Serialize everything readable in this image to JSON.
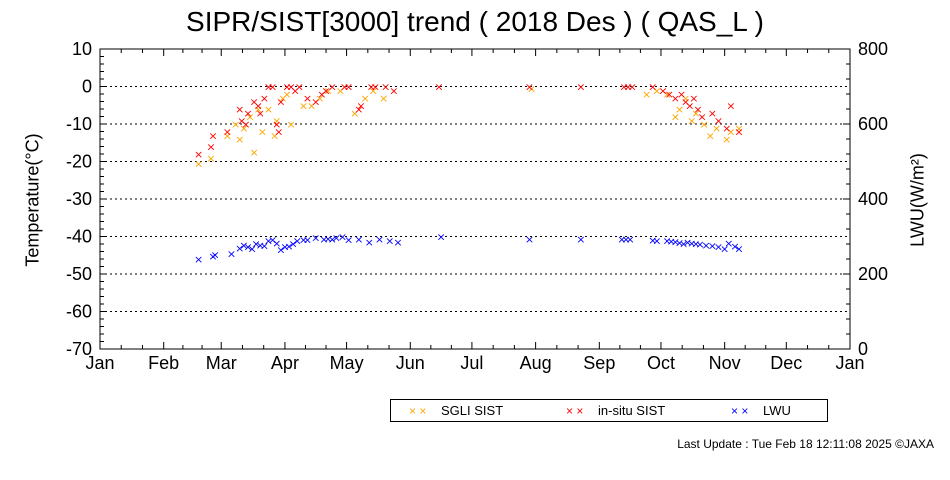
{
  "chart_data": {
    "type": "scatter",
    "title": "SIPR/SIST[3000] trend ( 2018 Des ) ( QAS_L )",
    "ylabel_left": "Temperature(°C)",
    "ylabel_right": "LWU(W/m²)",
    "ylim_left": [
      -70,
      10
    ],
    "ylim_right": [
      0,
      800
    ],
    "yticks_left": [
      10,
      0,
      -10,
      -20,
      -30,
      -40,
      -50,
      -60,
      -70
    ],
    "yticks_right": [
      800,
      600,
      400,
      200,
      0
    ],
    "xticks": [
      "Jan",
      "Feb",
      "Mar",
      "Apr",
      "May",
      "Jun",
      "Jul",
      "Aug",
      "Sep",
      "Oct",
      "Nov",
      "Dec",
      "Jan"
    ],
    "grid": "dotted horizontal",
    "colors": {
      "sgli": "#ffa500",
      "insitu": "#ff0000",
      "lwu": "#0000ff"
    },
    "series": [
      {
        "name": "SGLI SIST",
        "axis": "left",
        "points": [
          [
            "2018-02-18",
            -20.5
          ],
          [
            "2018-02-24",
            -19
          ],
          [
            "2018-03-04",
            -13
          ],
          [
            "2018-03-08",
            -10
          ],
          [
            "2018-03-10",
            -14
          ],
          [
            "2018-03-12",
            -11
          ],
          [
            "2018-03-15",
            -8
          ],
          [
            "2018-03-17",
            -17.5
          ],
          [
            "2018-03-19",
            -6
          ],
          [
            "2018-03-21",
            -12
          ],
          [
            "2018-03-24",
            -6
          ],
          [
            "2018-03-27",
            -13
          ],
          [
            "2018-03-28",
            -9
          ],
          [
            "2018-03-31",
            -3
          ],
          [
            "2018-04-02",
            -2
          ],
          [
            "2018-04-04",
            -10
          ],
          [
            "2018-04-10",
            -5
          ],
          [
            "2018-04-14",
            -5
          ],
          [
            "2018-04-18",
            -3
          ],
          [
            "2018-04-22",
            -1
          ],
          [
            "2018-04-28",
            -1
          ],
          [
            "2018-05-05",
            -7
          ],
          [
            "2018-05-10",
            -3
          ],
          [
            "2018-05-14",
            -1
          ],
          [
            "2018-05-19",
            -3
          ],
          [
            "2018-07-30",
            -0.5
          ],
          [
            "2018-09-24",
            -2
          ],
          [
            "2018-09-29",
            -1
          ],
          [
            "2018-10-04",
            -2
          ],
          [
            "2018-10-08",
            -8
          ],
          [
            "2018-10-10",
            -6
          ],
          [
            "2018-10-13",
            -3
          ],
          [
            "2018-10-16",
            -9
          ],
          [
            "2018-10-18",
            -7
          ],
          [
            "2018-10-22",
            -10
          ],
          [
            "2018-10-25",
            -13
          ],
          [
            "2018-10-28",
            -11
          ],
          [
            "2018-11-02",
            -14
          ],
          [
            "2018-11-04",
            -12
          ],
          [
            "2018-11-08",
            -11
          ]
        ]
      },
      {
        "name": "in-situ SIST",
        "axis": "left",
        "points": [
          [
            "2018-02-18",
            -18
          ],
          [
            "2018-02-24",
            -16
          ],
          [
            "2018-02-25",
            -13
          ],
          [
            "2018-03-04",
            -12
          ],
          [
            "2018-03-10",
            -6
          ],
          [
            "2018-03-11",
            -9
          ],
          [
            "2018-03-13",
            -10
          ],
          [
            "2018-03-14",
            -7
          ],
          [
            "2018-03-17",
            -4
          ],
          [
            "2018-03-19",
            -5
          ],
          [
            "2018-03-20",
            -7
          ],
          [
            "2018-03-22",
            -3
          ],
          [
            "2018-03-24",
            0
          ],
          [
            "2018-03-26",
            0
          ],
          [
            "2018-03-28",
            -10
          ],
          [
            "2018-03-29",
            -12
          ],
          [
            "2018-03-30",
            -4
          ],
          [
            "2018-04-02",
            0
          ],
          [
            "2018-04-04",
            0
          ],
          [
            "2018-04-06",
            -1
          ],
          [
            "2018-04-08",
            0
          ],
          [
            "2018-04-12",
            -3
          ],
          [
            "2018-04-16",
            -4
          ],
          [
            "2018-04-19",
            -2
          ],
          [
            "2018-04-21",
            -1
          ],
          [
            "2018-04-24",
            0
          ],
          [
            "2018-04-30",
            0
          ],
          [
            "2018-05-02",
            0
          ],
          [
            "2018-05-07",
            -6
          ],
          [
            "2018-05-08",
            -5
          ],
          [
            "2018-05-13",
            0
          ],
          [
            "2018-05-15",
            0
          ],
          [
            "2018-05-20",
            0
          ],
          [
            "2018-05-24",
            -1
          ],
          [
            "2018-06-15",
            0
          ],
          [
            "2018-07-29",
            0
          ],
          [
            "2018-08-23",
            0
          ],
          [
            "2018-09-13",
            0
          ],
          [
            "2018-09-15",
            0
          ],
          [
            "2018-09-17",
            0
          ],
          [
            "2018-09-27",
            0
          ],
          [
            "2018-10-02",
            -1
          ],
          [
            "2018-10-05",
            -2
          ],
          [
            "2018-10-08",
            -3
          ],
          [
            "2018-10-11",
            -2
          ],
          [
            "2018-10-13",
            -4
          ],
          [
            "2018-10-15",
            -5
          ],
          [
            "2018-10-17",
            -3
          ],
          [
            "2018-10-19",
            -6
          ],
          [
            "2018-10-21",
            -8
          ],
          [
            "2018-10-26",
            -7
          ],
          [
            "2018-10-29",
            -9
          ],
          [
            "2018-11-02",
            -11
          ],
          [
            "2018-11-04",
            -5
          ],
          [
            "2018-11-08",
            -12
          ]
        ]
      },
      {
        "name": "LWU",
        "axis": "right",
        "points": [
          [
            "2018-02-18",
            240
          ],
          [
            "2018-02-25",
            248
          ],
          [
            "2018-02-26",
            252
          ],
          [
            "2018-03-06",
            255
          ],
          [
            "2018-03-10",
            270
          ],
          [
            "2018-03-12",
            278
          ],
          [
            "2018-03-14",
            274
          ],
          [
            "2018-03-16",
            268
          ],
          [
            "2018-03-18",
            282
          ],
          [
            "2018-03-20",
            277
          ],
          [
            "2018-03-22",
            276
          ],
          [
            "2018-03-24",
            290
          ],
          [
            "2018-03-26",
            292
          ],
          [
            "2018-03-28",
            283
          ],
          [
            "2018-03-30",
            266
          ],
          [
            "2018-04-01",
            273
          ],
          [
            "2018-04-03",
            275
          ],
          [
            "2018-04-05",
            281
          ],
          [
            "2018-04-07",
            290
          ],
          [
            "2018-04-10",
            292
          ],
          [
            "2018-04-12",
            292
          ],
          [
            "2018-04-16",
            298
          ],
          [
            "2018-04-20",
            293
          ],
          [
            "2018-04-22",
            295
          ],
          [
            "2018-04-24",
            294
          ],
          [
            "2018-04-26",
            297
          ],
          [
            "2018-04-29",
            300
          ],
          [
            "2018-05-02",
            292
          ],
          [
            "2018-05-07",
            293
          ],
          [
            "2018-05-12",
            286
          ],
          [
            "2018-05-17",
            293
          ],
          [
            "2018-05-22",
            290
          ],
          [
            "2018-05-26",
            285
          ],
          [
            "2018-06-16",
            300
          ],
          [
            "2018-07-29",
            294
          ],
          [
            "2018-08-23",
            293
          ],
          [
            "2018-09-12",
            294
          ],
          [
            "2018-09-14",
            294
          ],
          [
            "2018-09-16",
            294
          ],
          [
            "2018-09-27",
            291
          ],
          [
            "2018-09-29",
            290
          ],
          [
            "2018-10-04",
            289
          ],
          [
            "2018-10-06",
            288
          ],
          [
            "2018-10-08",
            287
          ],
          [
            "2018-10-10",
            284
          ],
          [
            "2018-10-12",
            281
          ],
          [
            "2018-10-14",
            286
          ],
          [
            "2018-10-16",
            283
          ],
          [
            "2018-10-18",
            282
          ],
          [
            "2018-10-20",
            280
          ],
          [
            "2018-10-23",
            278
          ],
          [
            "2018-10-26",
            276
          ],
          [
            "2018-10-29",
            273
          ],
          [
            "2018-11-01",
            268
          ],
          [
            "2018-11-03",
            283
          ],
          [
            "2018-11-06",
            275
          ],
          [
            "2018-11-08",
            268
          ]
        ]
      }
    ],
    "legend_position": "bottom-right"
  },
  "footer": "Last Update : Tue Feb 18 12:11:08 2025  ©JAXA"
}
